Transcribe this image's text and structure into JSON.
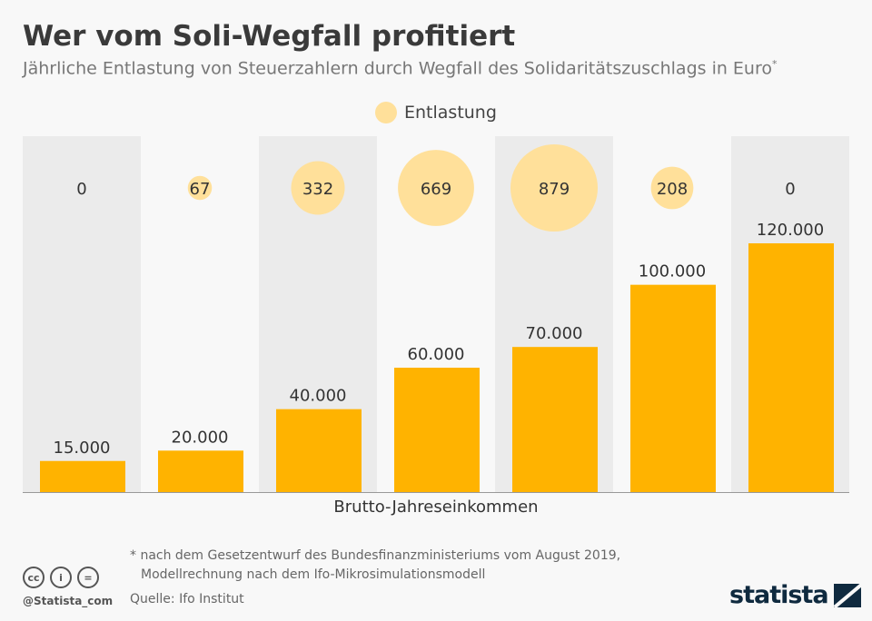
{
  "title": "Wer vom Soli-Wegfall profitiert",
  "subtitle": "Jährliche Entlastung von Steuerzahlern durch Wegfall des Solidaritätszuschlags in Euro",
  "subtitle_mark": "*",
  "footnote_line1": "* nach dem Gesetzentwurf des Bundesfinanzministeriums vom August 2019,",
  "footnote_line2": "Modellrechnung nach dem Ifo-Mikrosimulationsmodell",
  "source": "Quelle: Ifo Institut",
  "handle": "@Statista_com",
  "license_icons": [
    "cc",
    "i",
    "="
  ],
  "logo": "statista",
  "colors": {
    "bar": "#ffb300",
    "bubble": "#ffe09a",
    "band": "#ebebeb"
  },
  "chart_data": {
    "type": "bar",
    "xlabel": "Brutto-Jahreseinkommen",
    "categories": [
      "15.000",
      "20.000",
      "40.000",
      "60.000",
      "70.000",
      "100.000",
      "120.000"
    ],
    "values": [
      15000,
      20000,
      40000,
      60000,
      70000,
      100000,
      120000
    ],
    "bubble_series": {
      "name": "Entlastung",
      "values": [
        0,
        67,
        332,
        669,
        879,
        208,
        0
      ],
      "labels": [
        "0",
        "67",
        "332",
        "669",
        "879",
        "208",
        "0"
      ]
    },
    "legend": "Entlastung",
    "legend_position": "top-center",
    "ylim": [
      0,
      120000
    ],
    "grid": false
  }
}
